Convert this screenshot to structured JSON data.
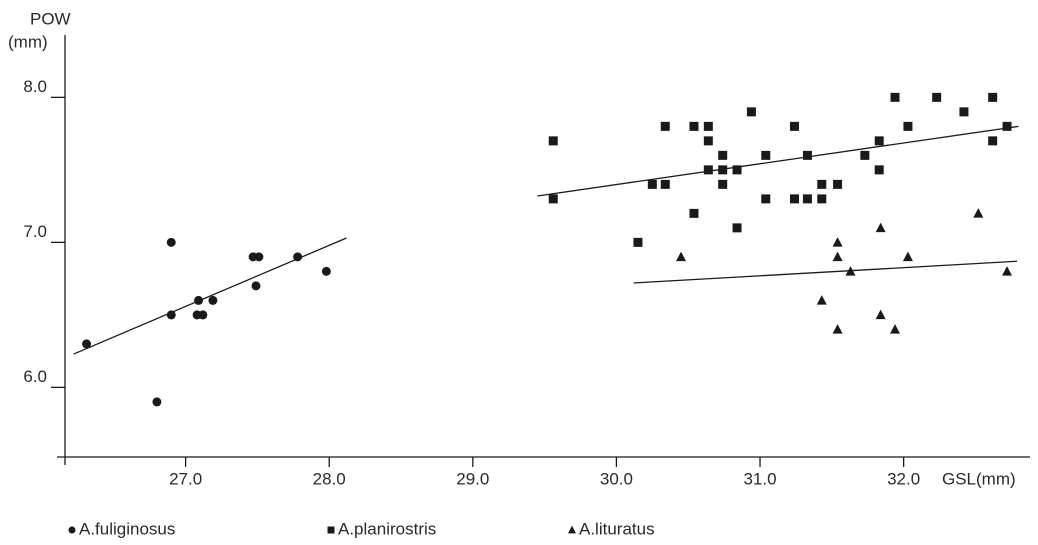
{
  "chart_data": {
    "type": "scatter",
    "y_label": [
      "POW",
      "(mm)"
    ],
    "x_label": "GSL(mm)",
    "xlim": [
      26.16,
      32.88
    ],
    "ylim": [
      5.52,
      8.43
    ],
    "xticks": [
      {
        "value": 27,
        "label": "27.0"
      },
      {
        "value": 28,
        "label": "28.0"
      },
      {
        "value": 29,
        "label": "29.0"
      },
      {
        "value": 30,
        "label": "30.0"
      },
      {
        "value": 31,
        "label": "31.0"
      },
      {
        "value": 32,
        "label": "32.0"
      }
    ],
    "yticks": [
      {
        "value": 6,
        "label": "6.0"
      },
      {
        "value": 7,
        "label": "7.0"
      },
      {
        "value": 8,
        "label": "8.0"
      }
    ],
    "grid": false,
    "legend": "bottom",
    "series": [
      {
        "name": "A.fuliginosus",
        "marker": "circle",
        "color": "#1a1a1a",
        "x": [
          26.31,
          26.8,
          26.9,
          26.9,
          27.09,
          27.08,
          27.12,
          27.19,
          27.47,
          27.51,
          27.49,
          27.78,
          27.98
        ],
        "values": [
          6.3,
          5.9,
          7.0,
          6.5,
          6.6,
          6.5,
          6.5,
          6.6,
          6.9,
          6.9,
          6.7,
          6.9,
          6.8
        ],
        "trend": {
          "x": [
            26.22,
            28.12
          ],
          "values": [
            6.23,
            7.03
          ]
        }
      },
      {
        "name": "A.planirostris",
        "marker": "square",
        "color": "#1a1a1a",
        "x": [
          29.56,
          29.56,
          30.15,
          30.25,
          30.34,
          30.34,
          30.54,
          30.54,
          30.64,
          30.64,
          30.64,
          30.74,
          30.74,
          30.74,
          30.84,
          30.84,
          30.94,
          31.04,
          31.04,
          31.24,
          31.24,
          31.33,
          31.33,
          31.43,
          31.43,
          31.54,
          31.73,
          31.83,
          31.83,
          31.94,
          32.03,
          32.23,
          32.42,
          32.62,
          32.62,
          32.72
        ],
        "values": [
          7.7,
          7.3,
          7.0,
          7.4,
          7.4,
          7.8,
          7.8,
          7.2,
          7.8,
          7.7,
          7.5,
          7.6,
          7.5,
          7.4,
          7.5,
          7.1,
          7.9,
          7.6,
          7.3,
          7.8,
          7.3,
          7.3,
          7.6,
          7.4,
          7.3,
          7.4,
          7.6,
          7.7,
          7.5,
          8.0,
          7.8,
          8.0,
          7.9,
          8.0,
          7.7,
          7.8
        ],
        "trend": {
          "x": [
            29.45,
            32.8
          ],
          "values": [
            7.32,
            7.8
          ]
        }
      },
      {
        "name": "A.lituratus",
        "marker": "triangle",
        "color": "#1a1a1a",
        "x": [
          30.45,
          31.54,
          31.54,
          31.54,
          31.43,
          31.63,
          31.84,
          31.84,
          31.94,
          32.03,
          32.52,
          32.72
        ],
        "values": [
          6.9,
          7.0,
          6.9,
          6.4,
          6.6,
          6.8,
          7.1,
          6.5,
          6.4,
          6.9,
          7.2,
          6.8
        ],
        "trend": {
          "x": [
            30.12,
            32.79
          ],
          "values": [
            6.72,
            6.87
          ]
        }
      }
    ]
  }
}
